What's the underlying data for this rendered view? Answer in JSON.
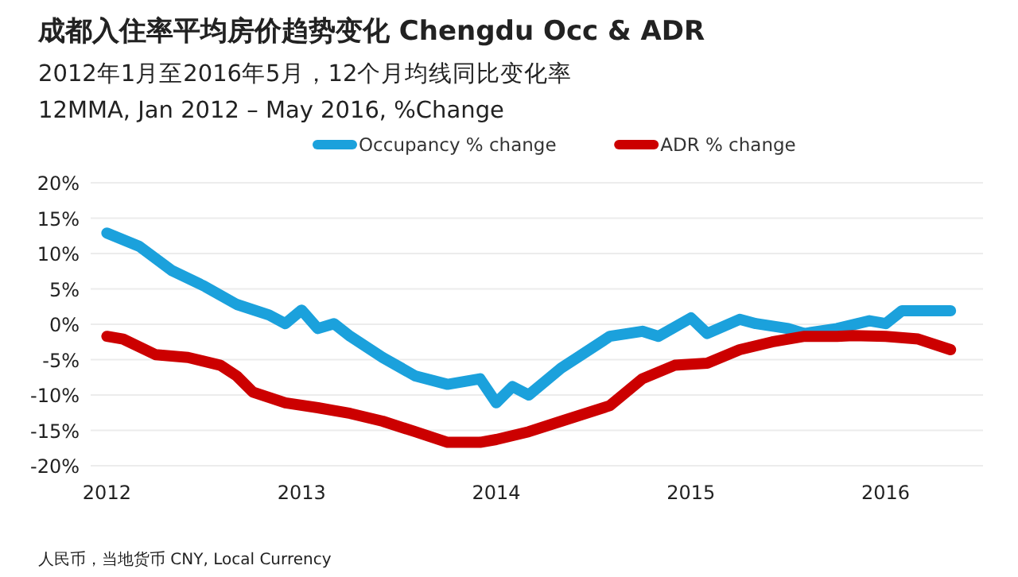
{
  "chart_data": {
    "type": "line",
    "title": "成都入住率平均房价趋势变化 Chengdu Occ & ADR",
    "subtitle": "2012年1月至2016年5月，12个月均线同比变化率\n12MMA, Jan 2012 – May 2016, %Change",
    "annotations": [
      "人民币，当地货币 CNY, Local Currency"
    ],
    "series": [
      {
        "name": "Occupancy % change",
        "color": "#1ba1dc",
        "x": [
          "2012-01",
          "2012-03",
          "2012-05",
          "2012-07",
          "2012-09",
          "2012-11",
          "2012-12",
          "2013-01",
          "2013-02",
          "2013-03",
          "2013-04",
          "2013-06",
          "2013-08",
          "2013-10",
          "2013-12",
          "2014-01",
          "2014-02",
          "2014-03",
          "2014-05",
          "2014-06",
          "2014-08",
          "2014-10",
          "2014-11",
          "2015-01",
          "2015-02",
          "2015-04",
          "2015-05",
          "2015-07",
          "2015-08",
          "2015-10",
          "2015-12",
          "2016-01",
          "2016-02",
          "2016-05"
        ],
        "values": [
          12.9,
          11.0,
          7.6,
          5.4,
          2.8,
          1.3,
          0.1,
          2.0,
          -0.6,
          0.1,
          -1.7,
          -4.7,
          -7.3,
          -8.5,
          -7.7,
          -11.1,
          -8.8,
          -10.0,
          -6.2,
          -4.7,
          -1.7,
          -1.0,
          -1.7,
          0.9,
          -1.3,
          0.7,
          0.1,
          -0.6,
          -1.3,
          -0.6,
          0.5,
          0.1,
          1.9,
          1.9
        ]
      },
      {
        "name": "ADR % change",
        "color": "#cc0000",
        "x": [
          "2012-01",
          "2012-02",
          "2012-04",
          "2012-06",
          "2012-08",
          "2012-09",
          "2012-10",
          "2012-12",
          "2013-02",
          "2013-04",
          "2013-06",
          "2013-08",
          "2013-10",
          "2013-12",
          "2014-01",
          "2014-03",
          "2014-05",
          "2014-08",
          "2014-10",
          "2014-12",
          "2015-02",
          "2015-04",
          "2015-06",
          "2015-08",
          "2015-10",
          "2015-11",
          "2016-01",
          "2016-03",
          "2016-05"
        ],
        "values": [
          -1.7,
          -2.1,
          -4.3,
          -4.7,
          -5.8,
          -7.3,
          -9.6,
          -11.1,
          -11.8,
          -12.6,
          -13.7,
          -15.2,
          -16.7,
          -16.7,
          -16.3,
          -15.2,
          -13.7,
          -11.5,
          -7.7,
          -5.8,
          -5.5,
          -3.6,
          -2.5,
          -1.7,
          -1.7,
          -1.6,
          -1.7,
          -2.1,
          -3.6
        ]
      }
    ],
    "xlim": [
      "2011-12",
      "2016-07"
    ],
    "xticks": [
      "2012",
      "2013",
      "2014",
      "2015",
      "2016"
    ],
    "ylim": [
      -20,
      20
    ],
    "yticks": [
      {
        "value": -20,
        "label": "-20%"
      },
      {
        "value": -15,
        "label": "-15%"
      },
      {
        "value": -10,
        "label": "-10%"
      },
      {
        "value": -5,
        "label": "-5%"
      },
      {
        "value": 0,
        "label": "0%"
      },
      {
        "value": 5,
        "label": "5%"
      },
      {
        "value": 10,
        "label": "10%"
      },
      {
        "value": 15,
        "label": "15%"
      },
      {
        "value": 20,
        "label": "20%"
      }
    ],
    "grid": "y",
    "legend": "top",
    "line_style": "solid",
    "marker": "none"
  }
}
